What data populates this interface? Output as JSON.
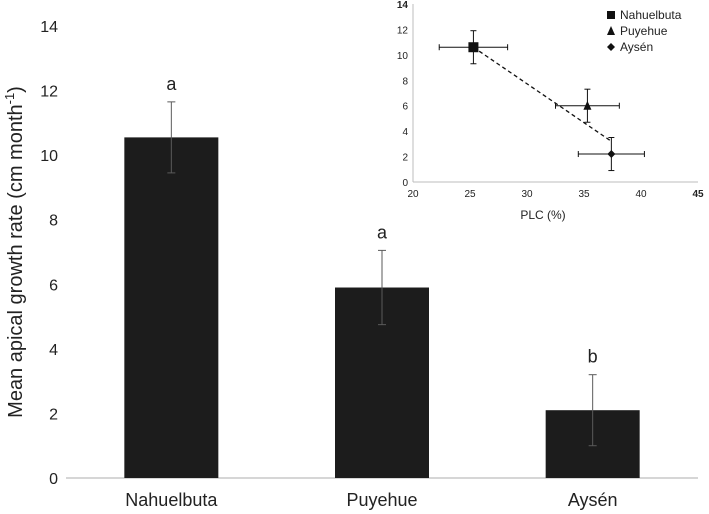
{
  "chart_data": [
    {
      "type": "bar",
      "categories": [
        "Nahuelbuta",
        "Puyehue",
        "Aysén"
      ],
      "values": [
        10.55,
        5.9,
        2.1
      ],
      "errors": [
        1.1,
        1.15,
        1.1
      ],
      "significance_letters": [
        "a",
        "a",
        "b"
      ],
      "ylabel": "Mean apical growth rate  (cm month",
      "ylabel_superscript": "-1",
      "ylabel_close": ")",
      "ylim": [
        0,
        14
      ],
      "yticks": [
        "0",
        "2",
        "4",
        "6",
        "8",
        "10",
        "12",
        "14"
      ],
      "bar_color": "#1c1c1c",
      "grid": false
    },
    {
      "type": "scatter",
      "xlabel": "PLC (%)",
      "xlim": [
        20,
        45
      ],
      "ylim": [
        0,
        14
      ],
      "xticks": [
        "20",
        "25",
        "30",
        "35",
        "40",
        "45"
      ],
      "yticks": [
        "0",
        "2",
        "4",
        "6",
        "8",
        "10",
        "12",
        "14"
      ],
      "series": [
        {
          "name": "Nahuelbuta",
          "marker": "square",
          "x": 25.3,
          "y": 10.6,
          "xerr": 3.0,
          "yerr": 1.3
        },
        {
          "name": "Puyehue",
          "marker": "triangle",
          "x": 35.3,
          "y": 6.0,
          "xerr": 2.8,
          "yerr": 1.3
        },
        {
          "name": "Aysén",
          "marker": "diamond",
          "x": 37.4,
          "y": 2.2,
          "xerr": 2.9,
          "yerr": 1.3
        }
      ],
      "trendline": {
        "style": "dashed",
        "from": [
          25.3,
          10.6
        ],
        "to": [
          37.4,
          3.2
        ]
      },
      "legend": "top-right",
      "grid": false
    }
  ]
}
